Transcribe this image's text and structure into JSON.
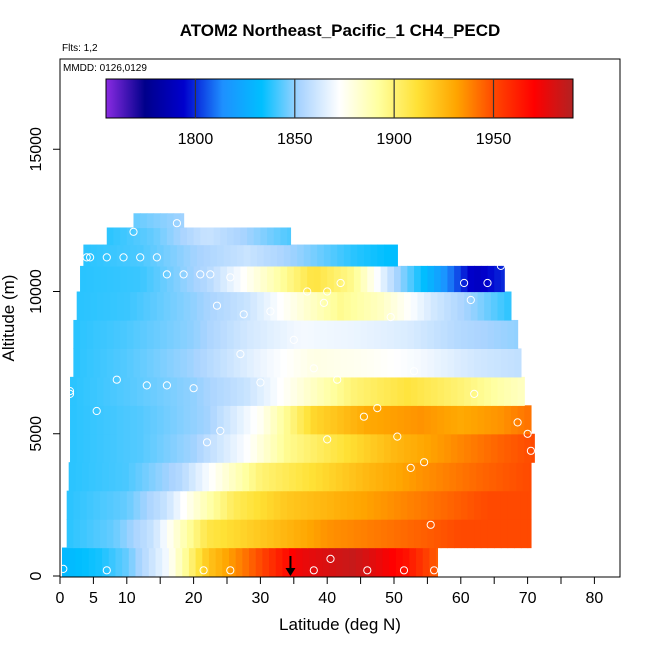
{
  "chart_data": {
    "type": "heatmap",
    "title": "ATOM2 Northeast_Pacific_1 CH4_PECD",
    "flights_note": "Flts: 1,2",
    "date_note": "MMDD: 0126,0129",
    "xlabel": "Latitude (deg N)",
    "ylabel": "Altitude (m)",
    "xlim": [
      0,
      85
    ],
    "ylim": [
      0,
      17500
    ],
    "x_ticks": [
      0,
      5,
      10,
      20,
      30,
      40,
      50,
      60,
      70,
      80
    ],
    "x_minor_ticks": [
      15,
      25,
      35,
      45,
      55,
      65,
      75,
      85
    ],
    "y_ticks": [
      0,
      5000,
      10000,
      15000
    ],
    "colorbar": {
      "min": 1755,
      "max": 1990,
      "ticks": [
        1800,
        1850,
        1900,
        1950
      ],
      "stops": [
        "#8a2be2",
        "#00008b",
        "#0000cd",
        "#1e90ff",
        "#00bfff",
        "#aad4ff",
        "#ffffff",
        "#ffffa0",
        "#ffe135",
        "#ffa500",
        "#ff4500",
        "#ff0000",
        "#b22222"
      ]
    },
    "layers": [
      {
        "alt": 500,
        "lat_min": 0.3,
        "lat_max": 56.5,
        "values": [
          [
            0,
            1830
          ],
          [
            6,
            1836
          ],
          [
            10,
            1845
          ],
          [
            16,
            1870
          ],
          [
            22,
            1920
          ],
          [
            30,
            1950
          ],
          [
            36,
            1975
          ],
          [
            44,
            1985
          ],
          [
            52,
            1965
          ],
          [
            56.5,
            1945
          ]
        ]
      },
      {
        "alt": 1500,
        "lat_min": 1,
        "lat_max": 70.5,
        "values": [
          [
            1,
            1838
          ],
          [
            8,
            1845
          ],
          [
            14,
            1860
          ],
          [
            18,
            1885
          ],
          [
            22,
            1908
          ],
          [
            30,
            1920
          ],
          [
            40,
            1935
          ],
          [
            50,
            1942
          ],
          [
            60,
            1950
          ],
          [
            70.5,
            1950
          ]
        ]
      },
      {
        "alt": 2500,
        "lat_min": 1,
        "lat_max": 70.5,
        "values": [
          [
            1,
            1838
          ],
          [
            10,
            1845
          ],
          [
            16,
            1860
          ],
          [
            20,
            1880
          ],
          [
            26,
            1905
          ],
          [
            34,
            1920
          ],
          [
            44,
            1930
          ],
          [
            54,
            1940
          ],
          [
            64,
            1950
          ],
          [
            70.5,
            1950
          ]
        ]
      },
      {
        "alt": 3500,
        "lat_min": 1.3,
        "lat_max": 70.5,
        "values": [
          [
            1.3,
            1838
          ],
          [
            10,
            1842
          ],
          [
            18,
            1855
          ],
          [
            24,
            1878
          ],
          [
            30,
            1900
          ],
          [
            38,
            1912
          ],
          [
            46,
            1925
          ],
          [
            54,
            1935
          ],
          [
            64,
            1945
          ],
          [
            70.5,
            1950
          ]
        ]
      },
      {
        "alt": 4500,
        "lat_min": 1.5,
        "lat_max": 71,
        "values": [
          [
            1.5,
            1838
          ],
          [
            12,
            1843
          ],
          [
            20,
            1852
          ],
          [
            28,
            1872
          ],
          [
            34,
            1895
          ],
          [
            42,
            1910
          ],
          [
            50,
            1925
          ],
          [
            58,
            1935
          ],
          [
            66,
            1945
          ],
          [
            71,
            1950
          ]
        ]
      },
      {
        "alt": 5500,
        "lat_min": 1.5,
        "lat_max": 70.5,
        "values": [
          [
            1.5,
            1838
          ],
          [
            12,
            1843
          ],
          [
            22,
            1852
          ],
          [
            30,
            1875
          ],
          [
            38,
            1915
          ],
          [
            46,
            1930
          ],
          [
            54,
            1935
          ],
          [
            60,
            1930
          ],
          [
            66,
            1935
          ],
          [
            70.5,
            1942
          ]
        ]
      },
      {
        "alt": 6500,
        "lat_min": 1.5,
        "lat_max": 69.5,
        "values": [
          [
            1.5,
            1838
          ],
          [
            10,
            1843
          ],
          [
            20,
            1850
          ],
          [
            28,
            1860
          ],
          [
            36,
            1880
          ],
          [
            44,
            1900
          ],
          [
            52,
            1910
          ],
          [
            60,
            1900
          ],
          [
            66,
            1890
          ],
          [
            69.5,
            1885
          ]
        ]
      },
      {
        "alt": 7500,
        "lat_min": 2,
        "lat_max": 69,
        "values": [
          [
            2,
            1838
          ],
          [
            10,
            1843
          ],
          [
            20,
            1852
          ],
          [
            30,
            1868
          ],
          [
            38,
            1878
          ],
          [
            46,
            1875
          ],
          [
            54,
            1870
          ],
          [
            62,
            1862
          ],
          [
            69,
            1858
          ]
        ]
      },
      {
        "alt": 8500,
        "lat_min": 2,
        "lat_max": 68.5,
        "values": [
          [
            2,
            1838
          ],
          [
            10,
            1842
          ],
          [
            20,
            1850
          ],
          [
            28,
            1862
          ],
          [
            36,
            1870
          ],
          [
            44,
            1868
          ],
          [
            52,
            1864
          ],
          [
            60,
            1855
          ],
          [
            68.5,
            1850
          ]
        ]
      },
      {
        "alt": 9500,
        "lat_min": 2.5,
        "lat_max": 67.5,
        "values": [
          [
            2.5,
            1838
          ],
          [
            10,
            1840
          ],
          [
            20,
            1850
          ],
          [
            28,
            1860
          ],
          [
            36,
            1880
          ],
          [
            42,
            1895
          ],
          [
            48,
            1885
          ],
          [
            56,
            1862
          ],
          [
            62,
            1850
          ],
          [
            67.5,
            1838
          ]
        ]
      },
      {
        "alt": 10500,
        "lat_min": 3,
        "lat_max": 66.5,
        "values": [
          [
            3,
            1838
          ],
          [
            12,
            1840
          ],
          [
            22,
            1855
          ],
          [
            32,
            1888
          ],
          [
            38,
            1910
          ],
          [
            44,
            1895
          ],
          [
            50,
            1855
          ],
          [
            56,
            1825
          ],
          [
            62,
            1790
          ],
          [
            66.5,
            1800
          ]
        ]
      },
      {
        "alt": 11300,
        "lat_min": 3.5,
        "lat_max": 50.5,
        "values": [
          [
            3.5,
            1838
          ],
          [
            12,
            1842
          ],
          [
            20,
            1852
          ],
          [
            28,
            1860
          ],
          [
            36,
            1850
          ],
          [
            44,
            1838
          ],
          [
            50.5,
            1832
          ]
        ]
      },
      {
        "alt": 12000,
        "lat_min": 7,
        "lat_max": 34.5,
        "values": [
          [
            7,
            1838
          ],
          [
            14,
            1845
          ],
          [
            22,
            1860
          ],
          [
            28,
            1852
          ],
          [
            34.5,
            1842
          ]
        ]
      },
      {
        "alt": 12500,
        "lat_min": 11,
        "lat_max": 18.5,
        "values": [
          [
            11,
            1845
          ],
          [
            18.5,
            1852
          ]
        ]
      }
    ],
    "points": [
      [
        0.5,
        250
      ],
      [
        7,
        200
      ],
      [
        21.5,
        200
      ],
      [
        25.5,
        200
      ],
      [
        38,
        200
      ],
      [
        46,
        200
      ],
      [
        51.5,
        200
      ],
      [
        56,
        200
      ],
      [
        40.5,
        600
      ],
      [
        69.5,
        700
      ],
      [
        55.5,
        1800
      ],
      [
        52.5,
        3800
      ],
      [
        54.5,
        4000
      ],
      [
        70.5,
        4400
      ],
      [
        22,
        4700
      ],
      [
        24,
        5100
      ],
      [
        40,
        4800
      ],
      [
        50.5,
        4900
      ],
      [
        70,
        5000
      ],
      [
        68.5,
        5400
      ],
      [
        45.5,
        5600
      ],
      [
        47.5,
        5900
      ],
      [
        5.5,
        5800
      ],
      [
        1.5,
        6400
      ],
      [
        1.5,
        6500
      ],
      [
        20,
        6600
      ],
      [
        13,
        6700
      ],
      [
        16,
        6700
      ],
      [
        62,
        6400
      ],
      [
        30,
        6800
      ],
      [
        8.5,
        6900
      ],
      [
        41.5,
        6900
      ],
      [
        53,
        7200
      ],
      [
        27,
        7800
      ],
      [
        38,
        7300
      ],
      [
        35,
        8300
      ],
      [
        49.5,
        9100
      ],
      [
        27.5,
        9200
      ],
      [
        31.5,
        9300
      ],
      [
        23.5,
        9500
      ],
      [
        39.5,
        9600
      ],
      [
        37,
        10000
      ],
      [
        40,
        10000
      ],
      [
        61.5,
        9700
      ],
      [
        42,
        10300
      ],
      [
        60.5,
        10300
      ],
      [
        64,
        10300
      ],
      [
        16,
        10600
      ],
      [
        18.5,
        10600
      ],
      [
        21,
        10600
      ],
      [
        22.5,
        10600
      ],
      [
        25.5,
        10500
      ],
      [
        66,
        10900
      ],
      [
        4,
        11200
      ],
      [
        4.5,
        11200
      ],
      [
        7,
        11200
      ],
      [
        9.5,
        11200
      ],
      [
        12,
        11200
      ],
      [
        14.5,
        11200
      ],
      [
        11,
        12100
      ],
      [
        17.5,
        12400
      ]
    ],
    "arrow_lat": 34.5
  }
}
